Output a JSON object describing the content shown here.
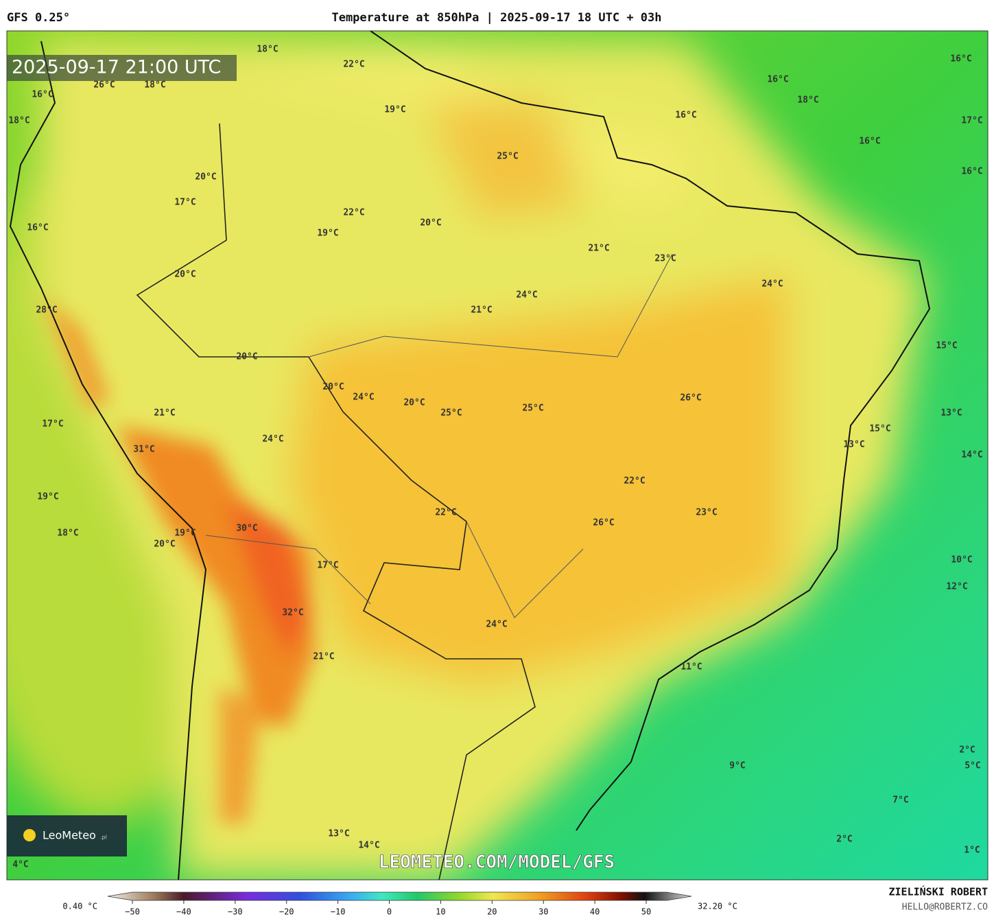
{
  "header": {
    "model": "GFS 0.25°",
    "title": "Temperature at 850hPa | 2025-09-17 18 UTC + 03h"
  },
  "timestamp": "2025-09-17 21:00 UTC",
  "logo": {
    "name": "LeoMeteo",
    "suffix": ".pl"
  },
  "watermark": "LEOMETEO.COM/MODEL/GFS",
  "map_labels": [
    "18°C",
    "22°C",
    "26°C",
    "18°C",
    "16°C",
    "18°C",
    "19°C",
    "16°C",
    "18°C",
    "16°C",
    "16°C",
    "17°C",
    "16°C",
    "25°C",
    "16°C",
    "20°C",
    "17°C",
    "22°C",
    "20°C",
    "16°C",
    "19°C",
    "21°C",
    "23°C",
    "20°C",
    "24°C",
    "24°C",
    "21°C",
    "28°C",
    "15°C",
    "20°C",
    "20°C",
    "24°C",
    "26°C",
    "20°C",
    "25°C",
    "25°C",
    "21°C",
    "13°C",
    "17°C",
    "15°C",
    "13°C",
    "24°C",
    "31°C",
    "14°C",
    "22°C",
    "19°C",
    "23°C",
    "22°C",
    "26°C",
    "30°C",
    "18°C",
    "19°C",
    "20°C",
    "10°C",
    "17°C",
    "12°C",
    "32°C",
    "24°C",
    "21°C",
    "11°C",
    "2°C",
    "5°C",
    "9°C",
    "7°C",
    "13°C",
    "2°C",
    "14°C",
    "1°C",
    "4°C"
  ],
  "colorbar": {
    "min_label": "0.40 °C",
    "max_label": "32.20 °C",
    "ticks": [
      {
        "value": -50,
        "label": "−50"
      },
      {
        "value": -40,
        "label": "−40"
      },
      {
        "value": -30,
        "label": "−30"
      },
      {
        "value": -20,
        "label": "−20"
      },
      {
        "value": -10,
        "label": "−10"
      },
      0,
      10,
      20,
      30,
      40,
      50
    ]
  },
  "footer": {
    "author": "ZIELIŃSKI ROBERT",
    "email": "HELLO@ROBERTZ.CO"
  }
}
